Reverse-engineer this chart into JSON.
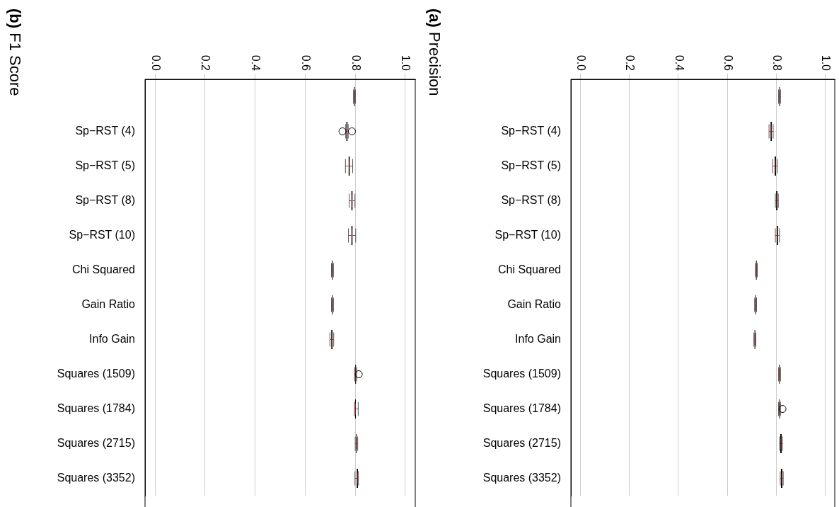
{
  "chart_data": [
    {
      "type": "box",
      "title": "(b) F1 Score",
      "orientation": "horizontal",
      "color": "#000000",
      "grid": "x",
      "xlim": [
        -0.04,
        1.04
      ],
      "xticks": [
        {
          "value": 0,
          "label": "0.0"
        },
        {
          "value": 0.2,
          "label": "0.2"
        },
        {
          "value": 0.4,
          "label": "0.4"
        },
        {
          "value": 0.6,
          "label": "0.6"
        },
        {
          "value": 0.8,
          "label": "0.8"
        },
        {
          "value": 1,
          "label": "1.0"
        }
      ],
      "categories": [
        null,
        "Sp−RST (4)",
        "Sp−RST (5)",
        "Sp−RST (8)",
        "Sp−RST (10)",
        "Chi Squared",
        "Gain Ratio",
        "Info Gain",
        "Squares (1509)",
        "Squares (1784)",
        "Squares (2715)",
        "Squares (3352)"
      ],
      "boxes": [
        {
          "low": 0.793,
          "q1": 0.795,
          "median": 0.797,
          "q3": 0.799,
          "high": 0.801
        },
        {
          "low": 0.762,
          "q1": 0.764,
          "median": 0.767,
          "q3": 0.77,
          "high": 0.772,
          "outliers": [
            0.749,
            0.787
          ]
        },
        {
          "low": 0.761,
          "q1": 0.773,
          "median": 0.776,
          "q3": 0.779,
          "high": 0.79
        },
        {
          "low": 0.776,
          "q1": 0.784,
          "median": 0.787,
          "q3": 0.79,
          "high": 0.799
        },
        {
          "low": 0.773,
          "q1": 0.784,
          "median": 0.787,
          "q3": 0.79,
          "high": 0.802
        },
        {
          "low": 0.705,
          "q1": 0.707,
          "median": 0.709,
          "q3": 0.711,
          "high": 0.713
        },
        {
          "low": 0.705,
          "q1": 0.707,
          "median": 0.709,
          "q3": 0.711,
          "high": 0.713
        },
        {
          "low": 0.699,
          "q1": 0.704,
          "median": 0.707,
          "q3": 0.71,
          "high": 0.714
        },
        {
          "low": 0.798,
          "q1": 0.8,
          "median": 0.802,
          "q3": 0.804,
          "high": 0.806,
          "outliers": [
            0.814
          ]
        },
        {
          "low": 0.797,
          "q1": 0.799,
          "median": 0.801,
          "q3": 0.803,
          "high": 0.812
        },
        {
          "low": 0.8,
          "q1": 0.803,
          "median": 0.805,
          "q3": 0.807,
          "high": 0.81
        },
        {
          "low": 0.799,
          "q1": 0.806,
          "median": 0.809,
          "q3": 0.811,
          "high": 0.813
        }
      ]
    },
    {
      "type": "box",
      "title": "(a) Precision",
      "orientation": "horizontal",
      "color": "#000000",
      "grid": "x",
      "xlim": [
        -0.04,
        1.04
      ],
      "xticks": [
        {
          "value": 0,
          "label": "0.0"
        },
        {
          "value": 0.2,
          "label": "0.2"
        },
        {
          "value": 0.4,
          "label": "0.4"
        },
        {
          "value": 0.6,
          "label": "0.6"
        },
        {
          "value": 0.8,
          "label": "0.8"
        },
        {
          "value": 1,
          "label": "1.0"
        }
      ],
      "categories": [
        null,
        "Sp−RST (4)",
        "Sp−RST (5)",
        "Sp−RST (8)",
        "Sp−RST (10)",
        "Chi Squared",
        "Gain Ratio",
        "Info Gain",
        "Squares (1509)",
        "Squares (1784)",
        "Squares (2715)",
        "Squares (3352)"
      ],
      "boxes": [
        {
          "low": 0.81,
          "q1": 0.812,
          "median": 0.814,
          "q3": 0.816,
          "high": 0.818
        },
        {
          "low": 0.771,
          "q1": 0.777,
          "median": 0.78,
          "q3": 0.783,
          "high": 0.788
        },
        {
          "low": 0.786,
          "q1": 0.794,
          "median": 0.797,
          "q3": 0.8,
          "high": 0.805
        },
        {
          "low": 0.797,
          "q1": 0.8,
          "median": 0.803,
          "q3": 0.806,
          "high": 0.809
        },
        {
          "low": 0.797,
          "q1": 0.803,
          "median": 0.806,
          "q3": 0.809,
          "high": 0.814
        },
        {
          "low": 0.715,
          "q1": 0.717,
          "median": 0.719,
          "q3": 0.721,
          "high": 0.723
        },
        {
          "low": 0.712,
          "q1": 0.714,
          "median": 0.716,
          "q3": 0.718,
          "high": 0.72
        },
        {
          "low": 0.709,
          "q1": 0.711,
          "median": 0.713,
          "q3": 0.715,
          "high": 0.717
        },
        {
          "low": 0.81,
          "q1": 0.812,
          "median": 0.814,
          "q3": 0.816,
          "high": 0.818
        },
        {
          "low": 0.81,
          "q1": 0.812,
          "median": 0.814,
          "q3": 0.816,
          "high": 0.818,
          "outliers": [
            0.826
          ]
        },
        {
          "low": 0.814,
          "q1": 0.817,
          "median": 0.82,
          "q3": 0.823,
          "high": 0.826
        },
        {
          "low": 0.817,
          "q1": 0.82,
          "median": 0.823,
          "q3": 0.826,
          "high": 0.829
        }
      ]
    }
  ]
}
